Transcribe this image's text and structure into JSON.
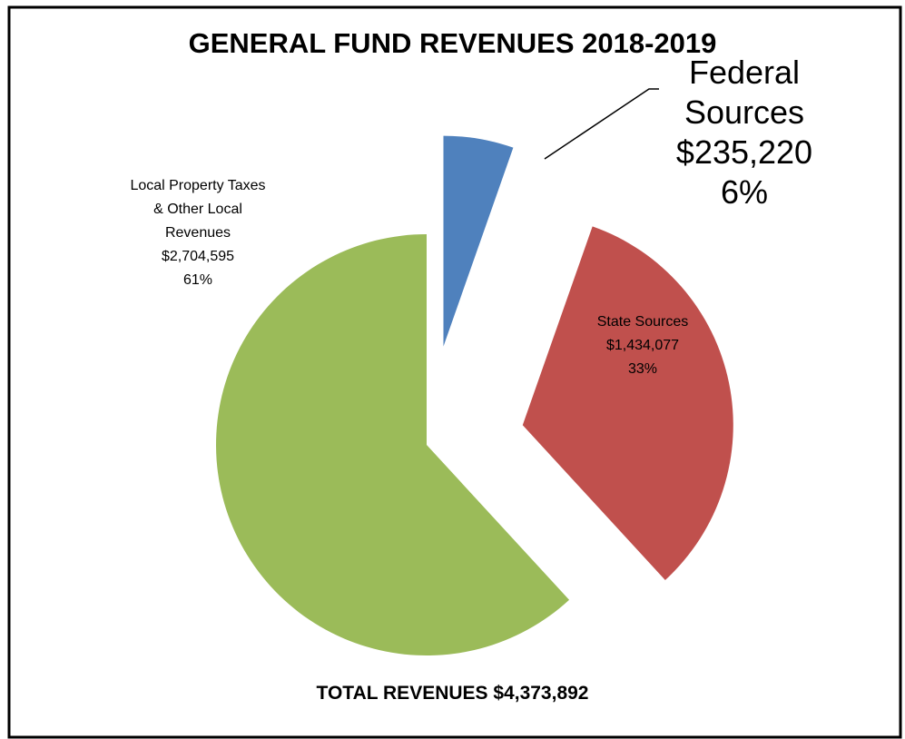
{
  "chart_data": {
    "type": "pie",
    "title": "GENERAL FUND REVENUES 2018-2019",
    "annotation": "TOTAL REVENUES $4,373,892",
    "categories": [
      "Federal Sources",
      "State Sources",
      "Local Property Taxes & Other Local Revenues"
    ],
    "values": [
      235220,
      1434077,
      2704595
    ],
    "value_labels": [
      "$235,220",
      "$1,434,077",
      "$2,704,595"
    ],
    "percent_labels": [
      "6%",
      "33%",
      "61%"
    ],
    "colors": [
      "#4f81bd",
      "#c0504d",
      "#9bbb59"
    ]
  }
}
